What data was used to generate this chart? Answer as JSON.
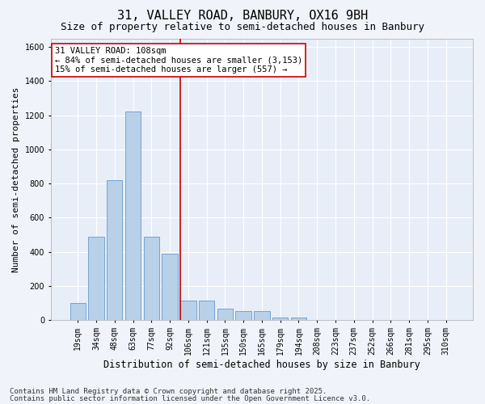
{
  "title1": "31, VALLEY ROAD, BANBURY, OX16 9BH",
  "title2": "Size of property relative to semi-detached houses in Banbury",
  "xlabel": "Distribution of semi-detached houses by size in Banbury",
  "ylabel": "Number of semi-detached properties",
  "categories": [
    "19sqm",
    "34sqm",
    "48sqm",
    "63sqm",
    "77sqm",
    "92sqm",
    "106sqm",
    "121sqm",
    "135sqm",
    "150sqm",
    "165sqm",
    "179sqm",
    "194sqm",
    "208sqm",
    "223sqm",
    "237sqm",
    "252sqm",
    "266sqm",
    "281sqm",
    "295sqm",
    "310sqm"
  ],
  "values": [
    100,
    490,
    820,
    1220,
    490,
    390,
    115,
    115,
    65,
    50,
    50,
    15,
    15,
    0,
    0,
    0,
    0,
    0,
    0,
    0,
    0
  ],
  "bar_color": "#b8d0e8",
  "bar_edge_color": "#6699cc",
  "vline_color": "#cc0000",
  "annotation_box_color": "#ffffff",
  "annotation_box_edge": "#cc0000",
  "annotation_text": "31 VALLEY ROAD: 108sqm\n← 84% of semi-detached houses are smaller (3,153)\n15% of semi-detached houses are larger (557) →",
  "ylim": [
    0,
    1650
  ],
  "yticks": [
    0,
    200,
    400,
    600,
    800,
    1000,
    1200,
    1400,
    1600
  ],
  "background_color": "#e8eef8",
  "grid_color": "#ffffff",
  "footer1": "Contains HM Land Registry data © Crown copyright and database right 2025.",
  "footer2": "Contains public sector information licensed under the Open Government Licence v3.0.",
  "title1_fontsize": 11,
  "title2_fontsize": 9,
  "xlabel_fontsize": 8.5,
  "ylabel_fontsize": 8,
  "tick_fontsize": 7,
  "annot_fontsize": 7.5,
  "footer_fontsize": 6.5
}
